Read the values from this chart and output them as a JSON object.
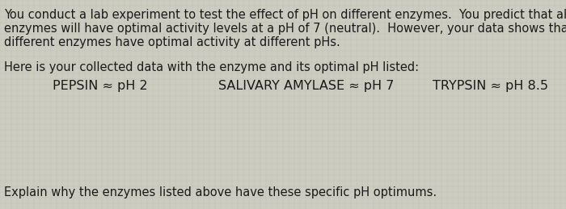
{
  "background_color": "#ccccc0",
  "grid_color": "#b8b8aa",
  "text_color": "#1a1a1a",
  "line1": "You conduct a lab experiment to test the effect of pH on different enzymes.  You predict that all",
  "line2": "enzymes will have optimal activity levels at a pH of 7 (neutral).  However, your data shows that",
  "line3": "different enzymes have optimal activity at different pHs.",
  "paragraph2": "Here is your collected data with the enzyme and its optimal pH listed:",
  "enzyme1": "PEPSIN ≈ pH 2",
  "enzyme2": "SALIVARY AMYLASE ≈ pH 7",
  "enzyme3": "TRYPSIN ≈ pH 8.5",
  "paragraph3": "Explain why the enzymes listed above have these specific pH optimums.",
  "font_size_body": 10.5,
  "font_size_enzymes": 11.5,
  "font_family": "DejaVu Sans"
}
